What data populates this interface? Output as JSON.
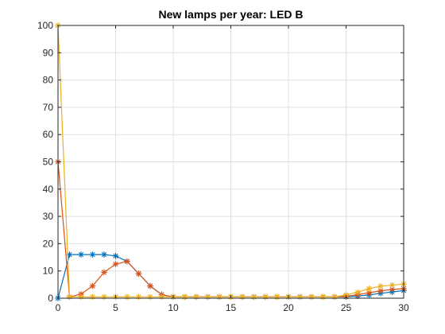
{
  "chart_data": {
    "type": "line",
    "title": "New lamps per year: LED B",
    "xlabel": "",
    "ylabel": "",
    "xlim": [
      0,
      30
    ],
    "ylim": [
      0,
      100
    ],
    "xticks": [
      0,
      5,
      10,
      15,
      20,
      25,
      30
    ],
    "yticks": [
      0,
      10,
      20,
      30,
      40,
      50,
      60,
      70,
      80,
      90,
      100
    ],
    "grid": true,
    "legend": "none",
    "marker": "asterisk",
    "x": [
      0,
      1,
      2,
      3,
      4,
      5,
      6,
      7,
      8,
      9,
      10,
      11,
      12,
      13,
      14,
      15,
      16,
      17,
      18,
      19,
      20,
      21,
      22,
      23,
      24,
      25,
      26,
      27,
      28,
      29,
      30
    ],
    "series": [
      {
        "color": "#0072BD",
        "values": [
          0,
          16,
          16,
          16,
          16,
          15.5,
          13.5,
          9,
          4.5,
          1.3,
          0.5,
          0.5,
          0.5,
          0.5,
          0.5,
          0.5,
          0.5,
          0.5,
          0.5,
          0.5,
          0.5,
          0.5,
          0.5,
          0.5,
          0.5,
          0.5,
          0.8,
          1.2,
          1.8,
          2.3,
          2.8
        ]
      },
      {
        "color": "#D95319",
        "values": [
          50,
          0.5,
          1.5,
          4.5,
          9.5,
          12.5,
          13.5,
          9,
          4.5,
          1.3,
          0.5,
          0.5,
          0.5,
          0.5,
          0.5,
          0.5,
          0.5,
          0.5,
          0.5,
          0.5,
          0.5,
          0.5,
          0.5,
          0.5,
          0.5,
          0.7,
          1.3,
          2,
          2.7,
          3.2,
          3.5
        ]
      },
      {
        "color": "#EDB120",
        "values": [
          100,
          0.5,
          0.5,
          0.5,
          0.5,
          0.5,
          0.5,
          0.5,
          0.5,
          0.5,
          0.5,
          0.5,
          0.5,
          0.5,
          0.5,
          0.5,
          0.5,
          0.5,
          0.5,
          0.5,
          0.5,
          0.5,
          0.5,
          0.5,
          0.5,
          1.2,
          2.2,
          3.5,
          4.4,
          4.8,
          5.2
        ]
      }
    ]
  }
}
